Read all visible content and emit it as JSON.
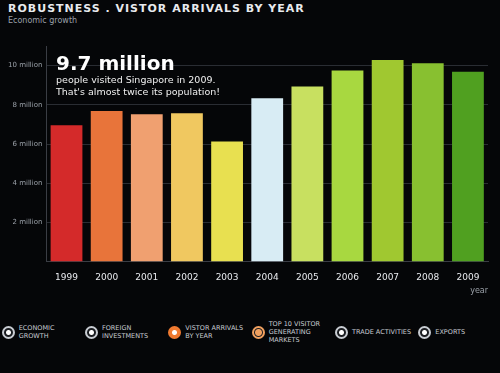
{
  "chart_data": {
    "type": "bar",
    "title": "ROBUSTNESS . VISTOR ARRIVALS BY YEAR",
    "subtitle": "Economic growth",
    "annotation": {
      "headline": "9.7 million",
      "text": [
        "people visited Singapore in 2009.",
        "That's almost twice its population!"
      ]
    },
    "x_label": "year",
    "categories": [
      "1999",
      "2000",
      "2001",
      "2002",
      "2003",
      "2004",
      "2005",
      "2006",
      "2007",
      "2008",
      "2009"
    ],
    "values": [
      6.96,
      7.69,
      7.52,
      7.57,
      6.13,
      8.33,
      8.94,
      9.75,
      10.28,
      10.12,
      9.68
    ],
    "colors": [
      "#d42a2a",
      "#e8743a",
      "#f0a070",
      "#f0c860",
      "#e8e050",
      "#d8ecf4",
      "#c8e060",
      "#a8d840",
      "#a0c830",
      "#88c030",
      "#50a020"
    ],
    "ylim": [
      0,
      11
    ],
    "yticks": [
      {
        "value": 2,
        "label": "2 million"
      },
      {
        "value": 4,
        "label": "4 million"
      },
      {
        "value": 6,
        "label": "6 million"
      },
      {
        "value": 8,
        "label": "8 million"
      },
      {
        "value": 10,
        "label": "10 million"
      }
    ],
    "grid": true
  },
  "navigation": [
    "ECONOMIC GROWTH",
    "FOREIGN INVESTMENTS",
    "VISTOR ARRIVALS BY YEAR",
    "TOP 10 VISITOR GENERATING MARKETS",
    "TRADE ACTIVITIES",
    "EXPORTS"
  ]
}
